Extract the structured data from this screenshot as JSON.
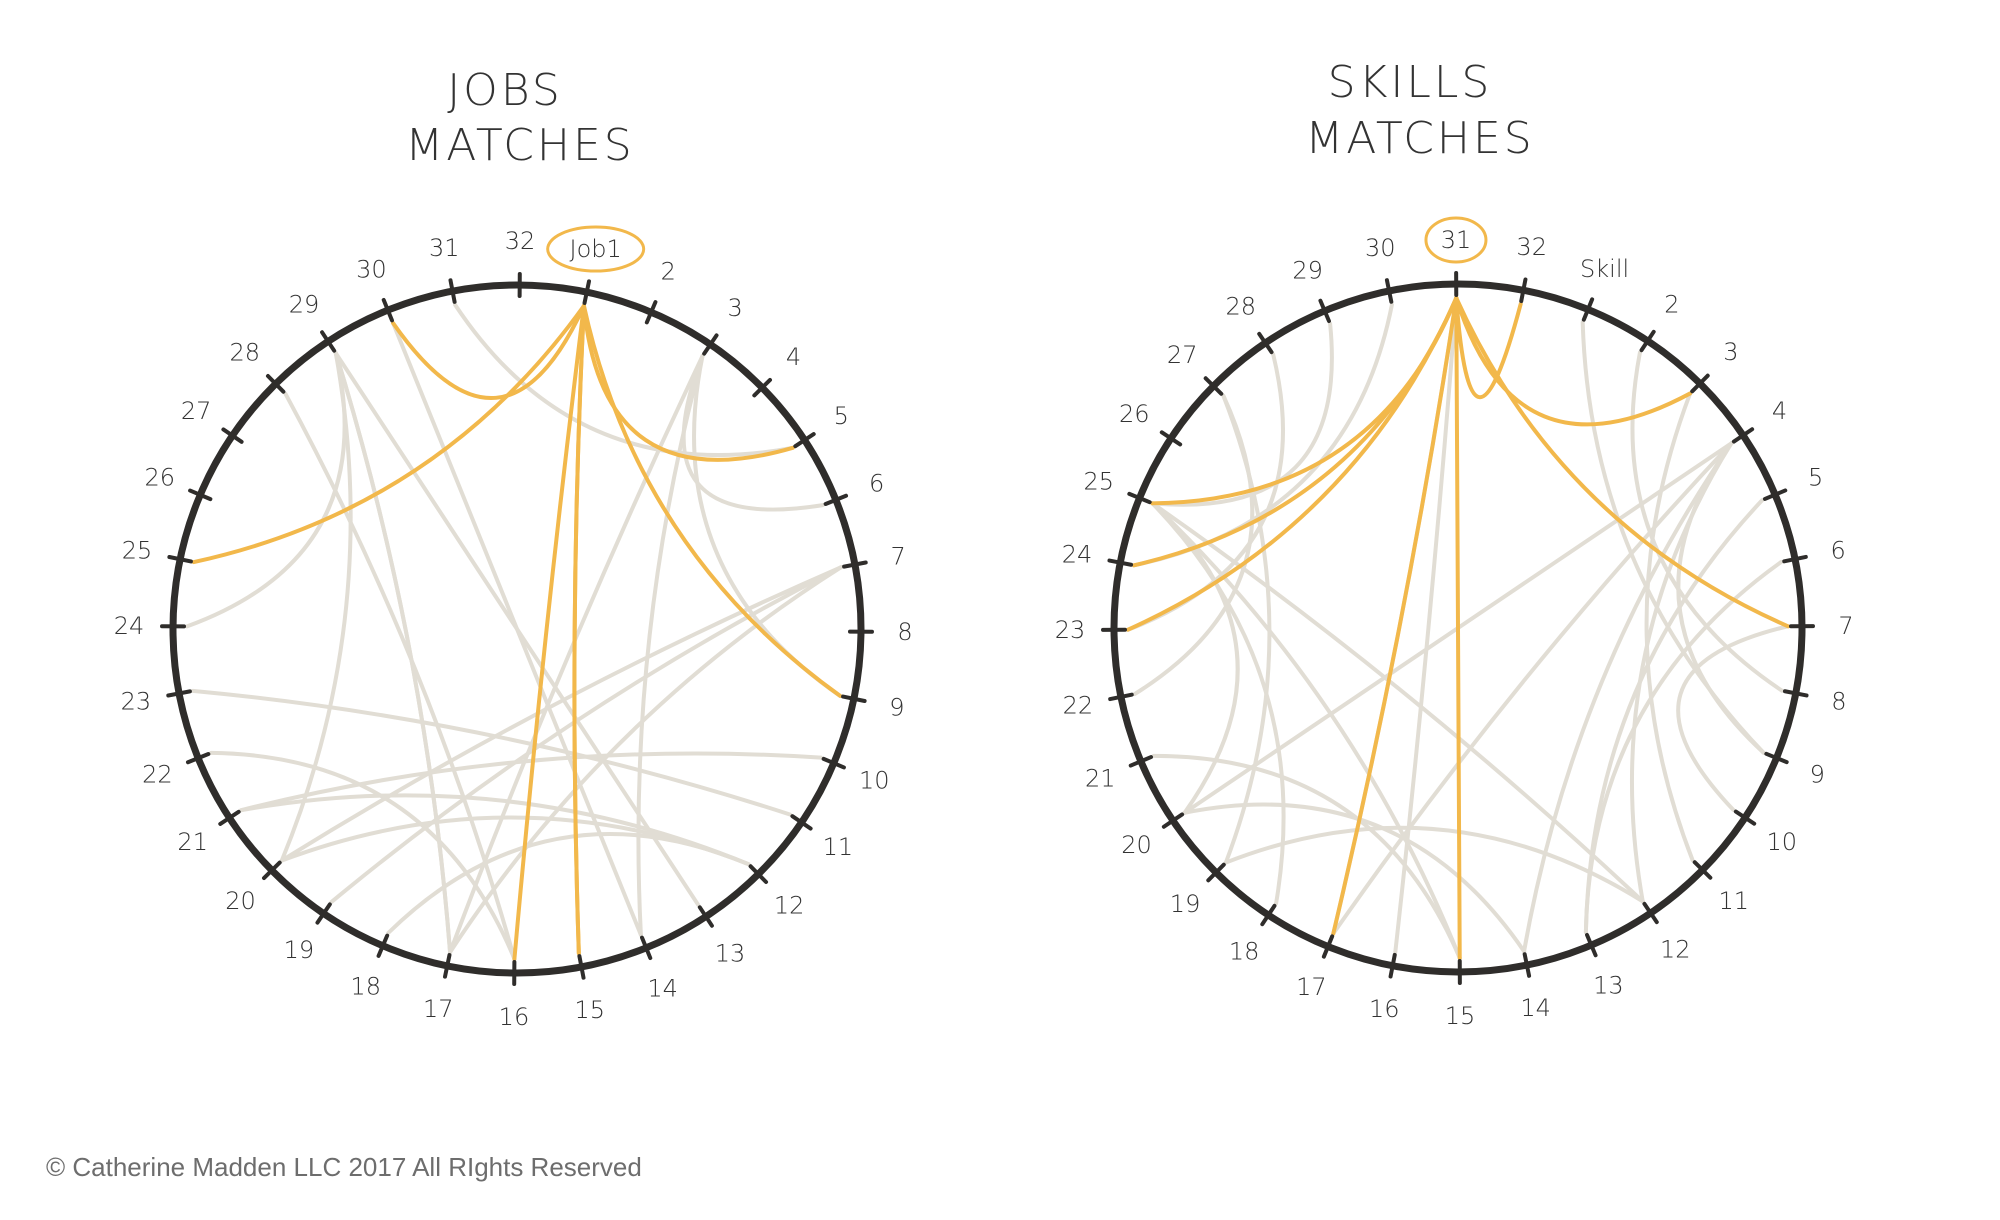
{
  "diagrams": [
    {
      "id": "jobs",
      "title_line1": "JOBS",
      "title_line2": "MATCHES",
      "highlight_label": "Job1",
      "labels": [
        "Job1",
        "2",
        "3",
        "4",
        "5",
        "6",
        "7",
        "8",
        "9",
        "10",
        "11",
        "12",
        "13",
        "14",
        "15",
        "16",
        "17",
        "18",
        "19",
        "20",
        "21",
        "22",
        "23",
        "24",
        "25",
        "26",
        "27",
        "28",
        "29",
        "30",
        "31",
        "32"
      ],
      "grey_links": [
        [
          29,
          17
        ],
        [
          29,
          17
        ],
        [
          29,
          13
        ],
        [
          29,
          20
        ],
        [
          29,
          24
        ],
        [
          28,
          16
        ],
        [
          3,
          17
        ],
        [
          3,
          14
        ],
        [
          3,
          6
        ],
        [
          3,
          9
        ],
        [
          7,
          19
        ],
        [
          7,
          20
        ],
        [
          7,
          17
        ],
        [
          23,
          11
        ],
        [
          22,
          16
        ],
        [
          21,
          12
        ],
        [
          21,
          10
        ],
        [
          20,
          12
        ],
        [
          18,
          12
        ],
        [
          31,
          5
        ],
        [
          30,
          14
        ]
      ],
      "highlight_links": [
        [
          1,
          30
        ],
        [
          1,
          25
        ],
        [
          1,
          5
        ],
        [
          1,
          9
        ],
        [
          1,
          16
        ],
        [
          1,
          15
        ],
        [
          1,
          15
        ]
      ]
    },
    {
      "id": "skills",
      "title_line1": "SKILLS",
      "title_line2": "MATCHES",
      "highlight_label": "31",
      "labels": [
        "Skill",
        "2",
        "3",
        "4",
        "5",
        "6",
        "7",
        "8",
        "9",
        "10",
        "11",
        "12",
        "13",
        "14",
        "15",
        "16",
        "17",
        "18",
        "19",
        "20",
        "21",
        "22",
        "23",
        "24",
        "25",
        "26",
        "27",
        "28",
        "29",
        "30",
        "31",
        "32"
      ],
      "grey_links": [
        [
          25,
          18
        ],
        [
          25,
          12
        ],
        [
          25,
          15
        ],
        [
          25,
          20
        ],
        [
          4,
          20
        ],
        [
          4,
          17
        ],
        [
          4,
          14
        ],
        [
          4,
          12
        ],
        [
          4,
          9
        ],
        [
          6,
          13
        ],
        [
          7,
          10
        ],
        [
          3,
          11
        ],
        [
          2,
          8
        ],
        [
          28,
          23
        ],
        [
          29,
          25
        ],
        [
          30,
          24
        ],
        [
          27,
          22
        ],
        [
          20,
          14
        ],
        [
          19,
          12
        ],
        [
          21,
          15
        ],
        [
          31,
          17
        ],
        [
          31,
          16
        ],
        [
          5,
          13
        ],
        [
          27,
          19
        ],
        [
          1,
          9
        ]
      ],
      "highlight_links": [
        [
          31,
          25
        ],
        [
          31,
          24
        ],
        [
          31,
          23
        ],
        [
          31,
          17
        ],
        [
          31,
          15
        ],
        [
          31,
          32
        ],
        [
          31,
          3
        ],
        [
          31,
          7
        ]
      ]
    }
  ],
  "colors": {
    "rim": "#2f2d2b",
    "grey_link": "#e1ddd4",
    "highlight_link": "#f2b84b",
    "text": "#333333"
  },
  "copyright": "© Catherine Madden LLC 2017 All RIghts Reserved"
}
